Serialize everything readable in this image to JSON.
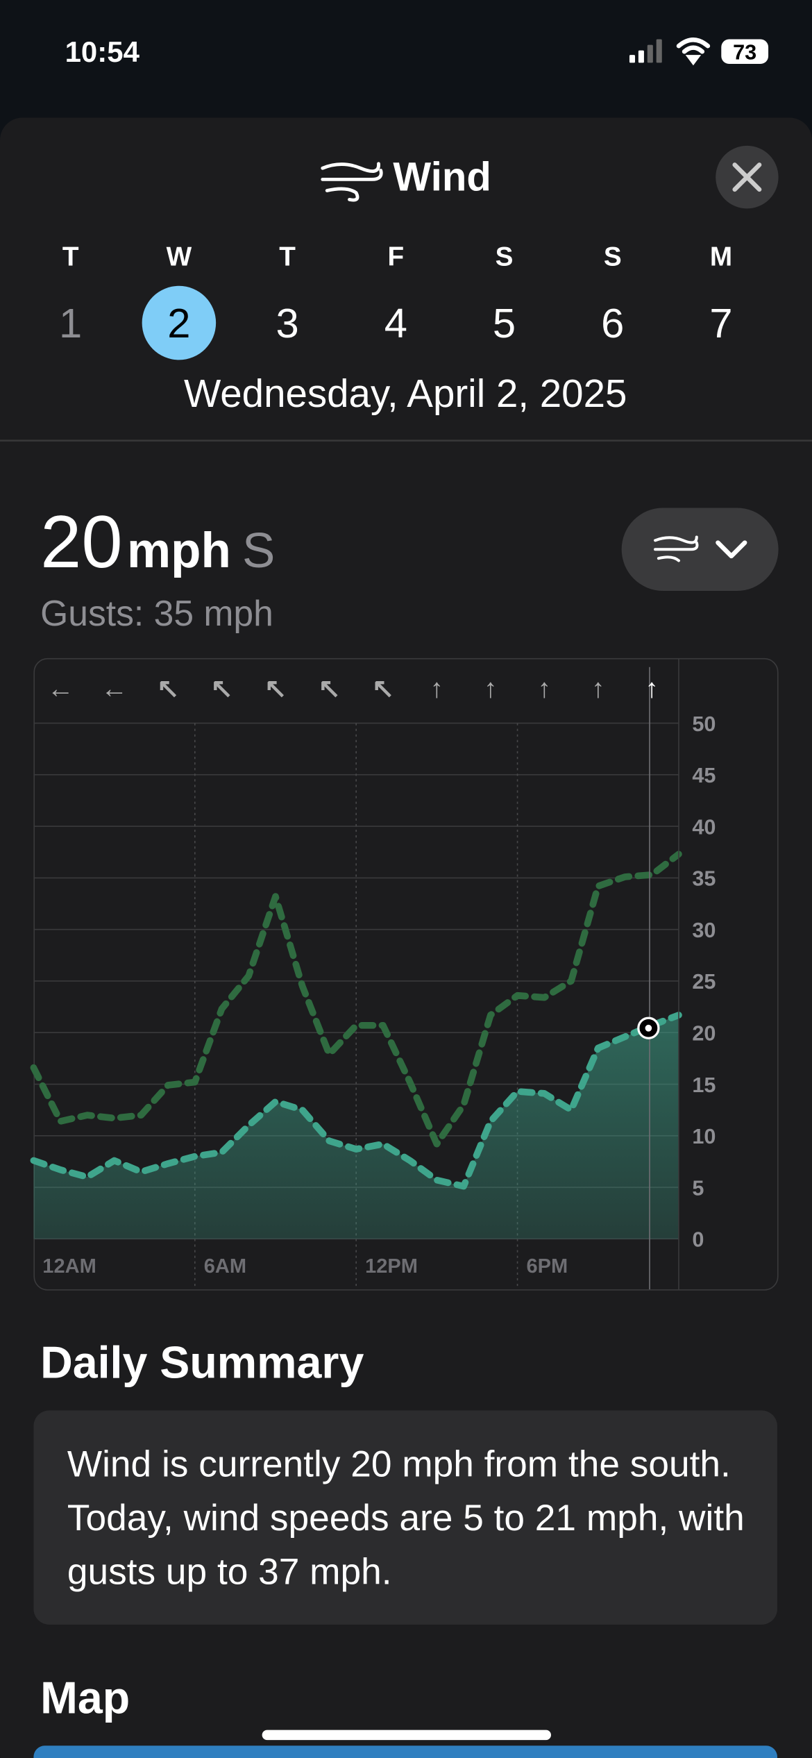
{
  "status_bar": {
    "time": "10:54",
    "battery": "73"
  },
  "header": {
    "title": "Wind"
  },
  "days": [
    {
      "letter": "T",
      "date": "1"
    },
    {
      "letter": "W",
      "date": "2"
    },
    {
      "letter": "T",
      "date": "3"
    },
    {
      "letter": "F",
      "date": "4"
    },
    {
      "letter": "S",
      "date": "5"
    },
    {
      "letter": "S",
      "date": "6"
    },
    {
      "letter": "M",
      "date": "7"
    }
  ],
  "selected_date": "Wednesday, April 2, 2025",
  "current": {
    "speed": "20",
    "unit": "mph",
    "direction": "S",
    "gusts": "Gusts: 35 mph"
  },
  "chart_data": {
    "type": "area",
    "x": [
      0,
      1,
      2,
      3,
      4,
      5,
      6,
      7,
      8,
      9,
      10,
      11,
      12,
      13,
      14,
      15,
      16,
      17,
      18,
      19,
      20,
      21,
      22,
      23,
      24
    ],
    "xlim": [
      0,
      24
    ],
    "xticks": [
      {
        "value": 0,
        "label": "12AM"
      },
      {
        "value": 6,
        "label": "6AM"
      },
      {
        "value": 12,
        "label": "12PM"
      },
      {
        "value": 18,
        "label": "6PM"
      }
    ],
    "ylim": [
      0,
      50
    ],
    "yticks": [
      0,
      5,
      10,
      15,
      20,
      25,
      30,
      35,
      40,
      45,
      50
    ],
    "grid": true,
    "series": [
      {
        "color": "#3fa58c",
        "style": "area",
        "values": [
          7.6,
          6.7,
          6,
          7.6,
          6.5,
          7.3,
          8,
          8.4,
          11,
          13.3,
          12.5,
          9.5,
          8.7,
          9.2,
          7.6,
          5.7,
          5.1,
          11.4,
          14.3,
          14.1,
          12.5,
          18.5,
          19.6,
          20.7,
          21.7
        ]
      },
      {
        "color": "#2f6b40",
        "style": "dashed",
        "values": [
          16.6,
          11.4,
          12,
          11.7,
          12,
          14.9,
          15.2,
          22.3,
          25.5,
          33.2,
          24.5,
          17.9,
          20.7,
          20.7,
          15.2,
          9.2,
          13,
          21.7,
          23.6,
          23.4,
          25,
          34.2,
          35.1,
          35.3,
          37.3
        ]
      }
    ]
  },
  "summary": {
    "title": "Daily Summary",
    "text": "Wind is currently 20 mph from the south. Today, wind speeds are 5 to 21 mph, with gusts up to 37 mph."
  },
  "map": {
    "title": "Map"
  }
}
